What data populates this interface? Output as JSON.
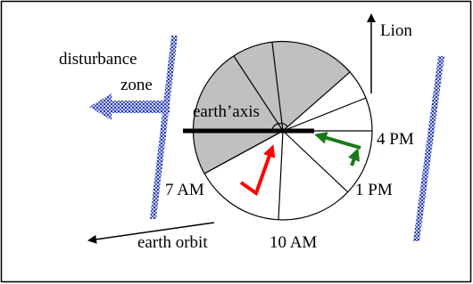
{
  "labels": {
    "lion": "Lion",
    "disturbance": "disturbance",
    "zone": "zone",
    "axis": "earth’axis",
    "pm4": "4 PM",
    "am7": "7 AM",
    "pm1": "1 PM",
    "am10": "10 AM",
    "orbit": "earth orbit"
  }
}
